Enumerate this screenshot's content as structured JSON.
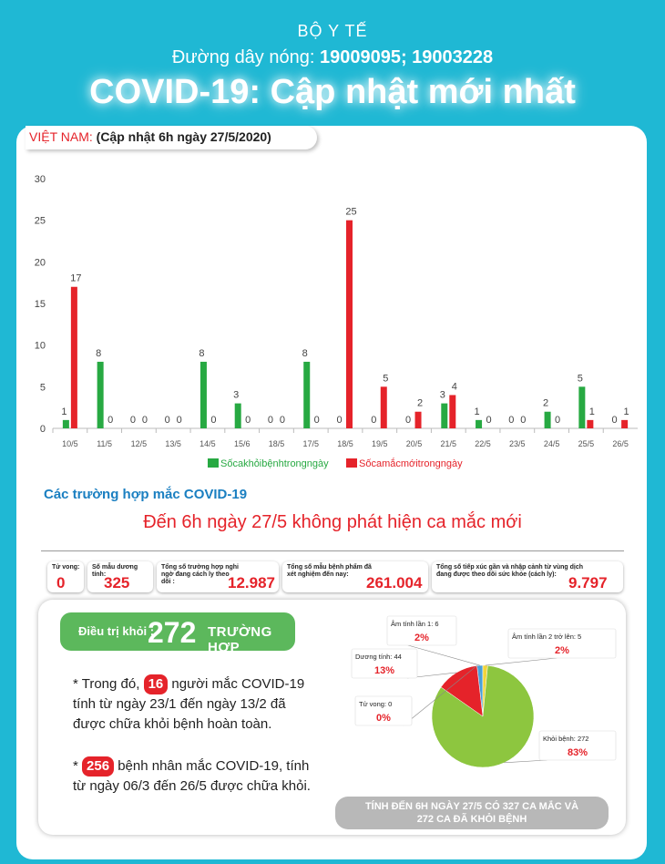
{
  "header": {
    "org": "BỘ Y TẾ",
    "hotline_label": "Đường dây nóng: ",
    "hotline_numbers": "19009095; 19003228",
    "title": "COVID-19: Cập nhật mới nhất"
  },
  "tag": {
    "country": "VIỆT NAM: ",
    "update": "(Cập nhật 6h ngày 27/5/2020)"
  },
  "chart_data": [
    {
      "type": "bar",
      "categories": [
        "10/5",
        "11/5",
        "12/5",
        "13/5",
        "14/5",
        "15/6",
        "18/5",
        "17/5",
        "18/5",
        "19/5",
        "20/5",
        "21/5",
        "22/5",
        "23/5",
        "24/5",
        "25/5",
        "26/5"
      ],
      "series": [
        {
          "name": "Sốcakhỏibệnhtrongngày",
          "color": "#27a942",
          "values": [
            1,
            8,
            0,
            0,
            8,
            3,
            0,
            8,
            0,
            0,
            0,
            3,
            1,
            0,
            2,
            5,
            0
          ]
        },
        {
          "name": "Sốcamắcmớitrongngày",
          "color": "#e5232a",
          "values": [
            17,
            0,
            0,
            0,
            0,
            0,
            0,
            0,
            25,
            5,
            2,
            4,
            0,
            0,
            0,
            1,
            1
          ]
        }
      ],
      "ylim": [
        0,
        30
      ],
      "yticks": [
        0,
        5,
        10,
        15,
        20,
        25,
        30
      ],
      "grid": false,
      "legend": "bottom"
    },
    {
      "type": "pie",
      "slices": [
        {
          "label": "Âm tính lần 1: 6",
          "value": 6,
          "percent": "2%",
          "color": "#4aa0d8"
        },
        {
          "label": "Âm tính lần 2 trở lên: 5",
          "value": 5,
          "percent": "2%",
          "color": "#f2d43a"
        },
        {
          "label": "Dương tính: 44",
          "value": 44,
          "percent": "13%",
          "color": "#e5232a"
        },
        {
          "label": "Tử vong: 0",
          "value": 0,
          "percent": "0%",
          "color": "#7a4ea0"
        },
        {
          "label": "Khỏi bệnh: 272",
          "value": 272,
          "percent": "83%",
          "color": "#8dc63f"
        }
      ]
    }
  ],
  "section": {
    "heading": "Các trường hợp mắc COVID-19",
    "no_new": "Đến 6h ngày 27/5 không phát hiện ca mắc mới"
  },
  "stats": [
    {
      "label": "Tử vong:",
      "value": "0"
    },
    {
      "label": "Số mẫu dương tính:",
      "value": "325"
    },
    {
      "label": "Tổng số trường hợp nghi ngờ đang cách ly theo dõi :",
      "value": "12.987"
    },
    {
      "label": "Tổng số mẫu bệnh phẩm đã xét nghiệm đến nay:",
      "value": "261.004"
    },
    {
      "label": "Tổng số tiếp xúc gần và nhập cảnh từ vùng dịch đang được theo dõi sức khỏe (cách ly):",
      "value": "9.797"
    }
  ],
  "recovered": {
    "label": "Điều trị khỏi :",
    "number": "272",
    "unit": "TRƯỜNG HỢP"
  },
  "notes": {
    "n1_prefix": "* Trong đó, ",
    "n1_badge": "16",
    "n1_text": " người mắc COVID-19 tính từ ngày 23/1 đến ngày 13/2 đã được chữa khỏi bệnh hoàn toàn.",
    "n2_prefix": "* ",
    "n2_badge": "256",
    "n2_text": " bệnh nhân mắc COVID-19, tính từ ngày 06/3 đến 26/5 được chữa khỏi."
  },
  "summary": {
    "line1": "TÍNH ĐẾN 6H NGÀY 27/5 CÓ 327 CA MẮC VÀ",
    "line2": "272 CA ĐÃ KHỎI BỆNH"
  }
}
